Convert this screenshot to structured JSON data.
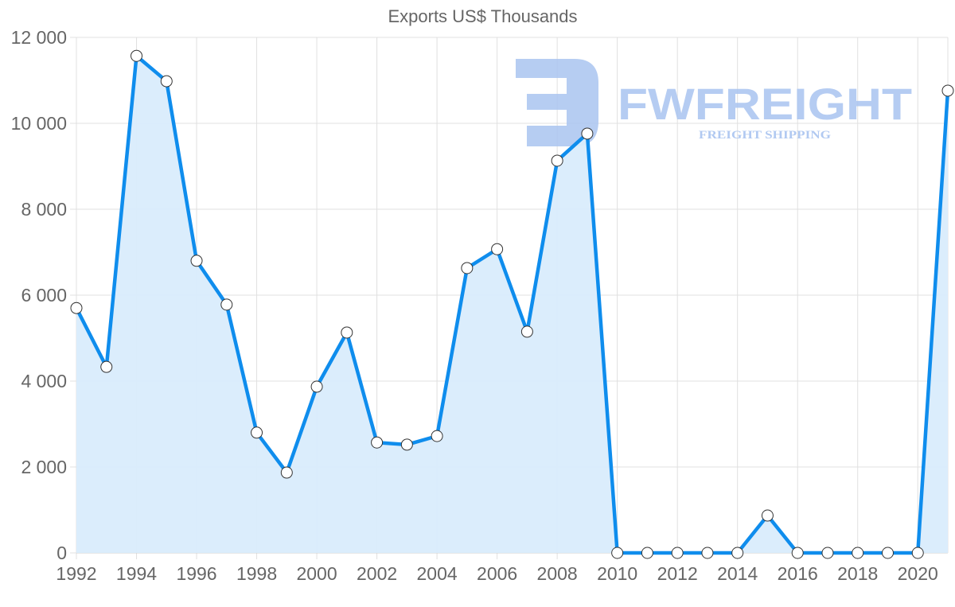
{
  "chart_data": {
    "type": "area",
    "title": "Exports US$ Thousands",
    "xlabel": "",
    "ylabel": "",
    "x": [
      1992,
      1993,
      1994,
      1995,
      1996,
      1997,
      1998,
      1999,
      2000,
      2001,
      2002,
      2003,
      2004,
      2005,
      2006,
      2007,
      2008,
      2009,
      2010,
      2011,
      2012,
      2013,
      2014,
      2015,
      2016,
      2017,
      2018,
      2019,
      2020,
      2021
    ],
    "series": [
      {
        "name": "Exports US$ Thousands",
        "values": [
          5700,
          4330,
          11570,
          10980,
          6800,
          5780,
          2800,
          1870,
          3870,
          5130,
          2570,
          2520,
          2720,
          6630,
          7070,
          5150,
          9130,
          9760,
          0,
          0,
          0,
          0,
          0,
          870,
          0,
          0,
          0,
          0,
          0,
          10760
        ]
      }
    ],
    "ylim": [
      0,
      12000
    ],
    "yticks": [
      "0",
      "2 000",
      "4 000",
      "6 000",
      "8 000",
      "10 000",
      "12 000"
    ],
    "xticks": [
      "1992",
      "1994",
      "1996",
      "1998",
      "2000",
      "2002",
      "2004",
      "2006",
      "2008",
      "2010",
      "2012",
      "2014",
      "2016",
      "2018",
      "2020"
    ],
    "grid": true,
    "legend": "none",
    "colors": {
      "line": "#0f8ded",
      "fill": "#d9ecfc",
      "grid": "#e0e0e0",
      "point_fill": "#ffffff",
      "point_stroke": "#333333"
    }
  },
  "watermark": {
    "brand": "FWFREIGHT",
    "tagline": "FREIGHT SHIPPING",
    "color": "#a9c4f0"
  }
}
